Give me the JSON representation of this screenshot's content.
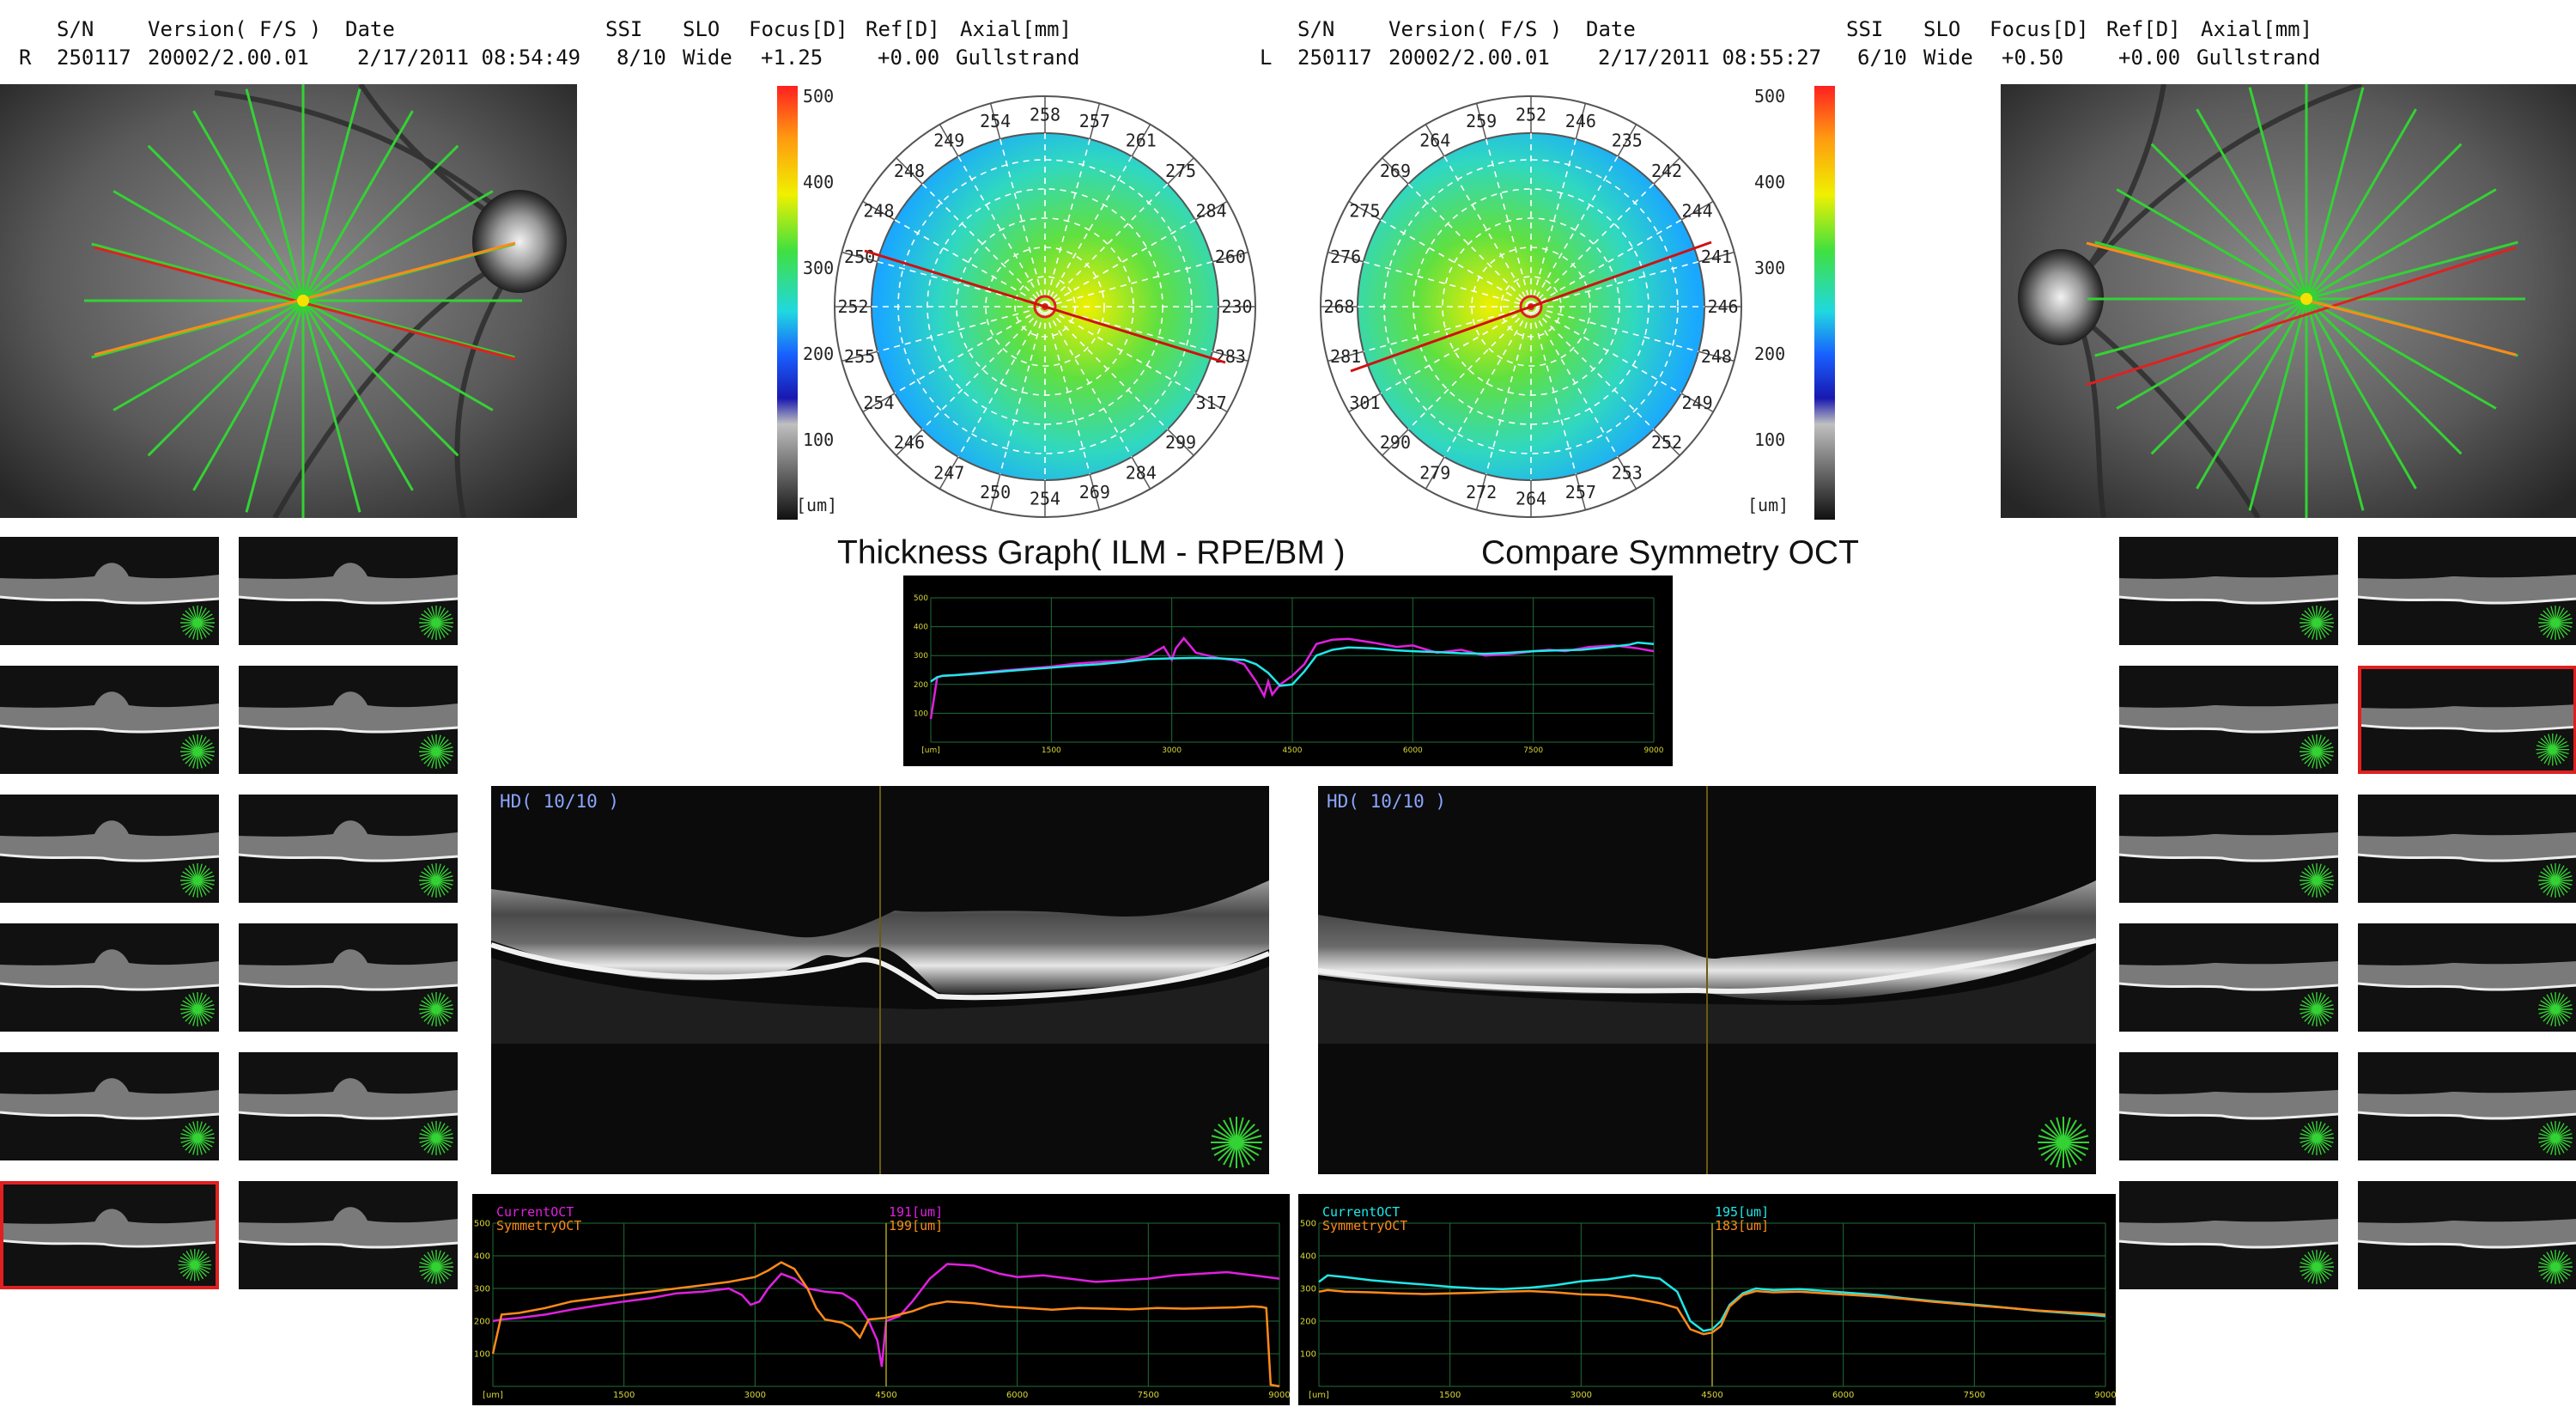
{
  "header_left": {
    "eye": "R",
    "sn_label": "S/N",
    "sn": "250117",
    "version_label": "Version( F/S )",
    "version": "20002/2.00.01",
    "date_label": "Date",
    "date": "2/17/2011 08:54:49",
    "ssi_label": "SSI",
    "ssi": "8/10",
    "slo_label": "SLO",
    "slo": "Wide",
    "focus_label": "Focus[D]",
    "focus": "+1.25",
    "ref_label": "Ref[D]",
    "ref": "+0.00",
    "axial_label": "Axial[mm]",
    "axial": "Gullstrand"
  },
  "header_right": {
    "eye": "L",
    "sn_label": "S/N",
    "sn": "250117",
    "version_label": "Version( F/S )",
    "version": "20002/2.00.01",
    "date_label": "Date",
    "date": "2/17/2011 08:55:27",
    "ssi_label": "SSI",
    "ssi": "6/10",
    "slo_label": "SLO",
    "slo": "Wide",
    "focus_label": "Focus[D]",
    "focus": "+0.50",
    "ref_label": "Ref[D]",
    "ref": "+0.00",
    "axial_label": "Axial[mm]",
    "axial": "Gullstrand"
  },
  "colorbar": {
    "ticks": [
      "500",
      "400",
      "300",
      "200",
      "100"
    ],
    "unit": "[um]"
  },
  "thickness_map_left": {
    "labels": [
      "258",
      "257",
      "261",
      "275",
      "284",
      "260",
      "230",
      "283",
      "317",
      "299",
      "284",
      "269",
      "254",
      "250",
      "247",
      "246",
      "254",
      "255",
      "252",
      "250",
      "248",
      "248",
      "249",
      "254"
    ]
  },
  "thickness_map_right": {
    "labels": [
      "252",
      "246",
      "235",
      "242",
      "244",
      "241",
      "246",
      "248",
      "249",
      "252",
      "253",
      "257",
      "264",
      "272",
      "279",
      "290",
      "301",
      "281",
      "268",
      "276",
      "275",
      "269",
      "264",
      "259"
    ]
  },
  "titles": {
    "thickness_graph": "Thickness Graph( ILM - RPE/BM )",
    "compare": "Compare Symmetry OCT"
  },
  "scans": {
    "left_label": "HD( 10/10 )",
    "right_label": "HD( 10/10 )"
  },
  "compare_left": {
    "current_label": "CurrentOCT",
    "symmetry_label": "SymmetryOCT",
    "current_value": "191[um]",
    "symmetry_value": "199[um]"
  },
  "compare_right": {
    "current_label": "CurrentOCT",
    "symmetry_label": "SymmetryOCT",
    "current_value": "195[um]",
    "symmetry_value": "183[um]"
  },
  "chart_data": [
    {
      "type": "line",
      "title": "Thickness Graph( ILM - RPE/BM )",
      "x_ticks": [
        "[um]",
        "1500",
        "3000",
        "4500",
        "6000",
        "7500",
        "9000"
      ],
      "y_ticks": [
        "500",
        "400",
        "300",
        "200",
        "100"
      ],
      "xlim": [
        0,
        9000
      ],
      "ylim": [
        0,
        500
      ],
      "grid": true,
      "series": [
        {
          "color": "#e020e0",
          "x": [
            0,
            80,
            150,
            300,
            600,
            900,
            1200,
            1500,
            1800,
            2100,
            2400,
            2700,
            2900,
            3000,
            3050,
            3150,
            3300,
            3450,
            3600,
            3750,
            3900,
            4050,
            4150,
            4200,
            4250,
            4350,
            4500,
            4650,
            4800,
            5000,
            5200,
            5500,
            5800,
            6000,
            6300,
            6600,
            6900,
            7200,
            7500,
            7700,
            7900,
            8200,
            8500,
            8800,
            8900,
            9000
          ],
          "y": [
            80,
            225,
            230,
            232,
            240,
            248,
            255,
            262,
            272,
            278,
            282,
            298,
            330,
            285,
            325,
            360,
            310,
            300,
            290,
            285,
            270,
            210,
            160,
            210,
            165,
            200,
            230,
            270,
            340,
            355,
            358,
            345,
            330,
            335,
            310,
            320,
            300,
            305,
            315,
            320,
            315,
            330,
            335,
            325,
            320,
            315
          ]
        },
        {
          "color": "#20e8e8",
          "x": [
            0,
            80,
            150,
            300,
            600,
            900,
            1200,
            1500,
            1800,
            2100,
            2400,
            2700,
            3000,
            3300,
            3600,
            3900,
            4050,
            4200,
            4350,
            4500,
            4650,
            4800,
            5000,
            5200,
            5500,
            5800,
            6000,
            6300,
            6600,
            6900,
            7200,
            7500,
            7800,
            8100,
            8400,
            8700,
            8800,
            9000
          ],
          "y": [
            210,
            225,
            230,
            232,
            238,
            245,
            252,
            258,
            265,
            270,
            278,
            288,
            290,
            292,
            290,
            285,
            270,
            240,
            195,
            200,
            245,
            300,
            320,
            328,
            325,
            318,
            315,
            312,
            308,
            306,
            310,
            315,
            318,
            320,
            328,
            338,
            345,
            340
          ]
        }
      ]
    },
    {
      "type": "line",
      "x_ticks": [
        "[um]",
        "1500",
        "3000",
        "4500",
        "6000",
        "7500",
        "9000"
      ],
      "y_ticks": [
        "500",
        "400",
        "300",
        "200",
        "100"
      ],
      "xlim": [
        0,
        9000
      ],
      "ylim": [
        0,
        500
      ],
      "grid": true,
      "series": [
        {
          "name": "CurrentOCT",
          "color": "#e020e0",
          "x": [
            0,
            100,
            300,
            600,
            900,
            1200,
            1500,
            1800,
            2100,
            2400,
            2700,
            2850,
            2950,
            3050,
            3150,
            3300,
            3450,
            3600,
            3800,
            4000,
            4150,
            4300,
            4400,
            4450,
            4500,
            4650,
            4800,
            5000,
            5200,
            5500,
            5800,
            6000,
            6300,
            6600,
            6900,
            7200,
            7500,
            7800,
            8100,
            8400,
            8700,
            9000
          ],
          "y": [
            200,
            205,
            210,
            220,
            235,
            248,
            260,
            270,
            285,
            290,
            300,
            280,
            250,
            260,
            300,
            345,
            330,
            300,
            290,
            285,
            260,
            200,
            140,
            60,
            200,
            215,
            260,
            330,
            375,
            370,
            345,
            335,
            340,
            330,
            320,
            325,
            330,
            340,
            345,
            350,
            340,
            330
          ]
        },
        {
          "name": "SymmetryOCT",
          "color": "#ff8a1a",
          "x": [
            0,
            100,
            300,
            600,
            900,
            1200,
            1500,
            1800,
            2100,
            2400,
            2700,
            3000,
            3150,
            3300,
            3450,
            3600,
            3700,
            3800,
            3900,
            4000,
            4100,
            4200,
            4300,
            4500,
            4650,
            4800,
            5000,
            5200,
            5500,
            5800,
            6100,
            6400,
            6700,
            7000,
            7300,
            7600,
            7900,
            8200,
            8500,
            8700,
            8800,
            8850,
            8900,
            9000
          ],
          "y": [
            100,
            220,
            225,
            240,
            260,
            270,
            280,
            290,
            300,
            310,
            320,
            335,
            355,
            380,
            360,
            300,
            240,
            205,
            200,
            195,
            180,
            150,
            205,
            210,
            220,
            230,
            250,
            260,
            255,
            245,
            240,
            235,
            240,
            238,
            236,
            240,
            238,
            240,
            242,
            245,
            243,
            240,
            5,
            0
          ]
        }
      ]
    },
    {
      "type": "line",
      "x_ticks": [
        "[um]",
        "1500",
        "3000",
        "4500",
        "6000",
        "7500",
        "9000"
      ],
      "y_ticks": [
        "500",
        "400",
        "300",
        "200",
        "100"
      ],
      "xlim": [
        0,
        9000
      ],
      "ylim": [
        0,
        500
      ],
      "grid": true,
      "series": [
        {
          "name": "CurrentOCT",
          "color": "#20e8e8",
          "x": [
            0,
            100,
            300,
            600,
            900,
            1200,
            1500,
            1800,
            2100,
            2400,
            2700,
            3000,
            3300,
            3600,
            3900,
            4100,
            4250,
            4400,
            4500,
            4600,
            4700,
            4850,
            5000,
            5200,
            5500,
            5800,
            6100,
            6400,
            6700,
            7000,
            7300,
            7600,
            7900,
            8200,
            8500,
            8800,
            9000
          ],
          "y": [
            320,
            340,
            335,
            325,
            318,
            312,
            305,
            300,
            298,
            302,
            310,
            322,
            328,
            340,
            330,
            290,
            200,
            170,
            175,
            200,
            250,
            285,
            300,
            295,
            298,
            292,
            286,
            280,
            270,
            262,
            255,
            248,
            240,
            232,
            226,
            220,
            215
          ]
        },
        {
          "name": "SymmetryOCT",
          "color": "#ff8a1a",
          "x": [
            0,
            100,
            300,
            600,
            900,
            1200,
            1500,
            1800,
            2100,
            2400,
            2700,
            3000,
            3300,
            3600,
            3900,
            4100,
            4250,
            4400,
            4500,
            4600,
            4700,
            4850,
            5000,
            5200,
            5500,
            5800,
            6100,
            6400,
            6700,
            7000,
            7300,
            7600,
            7900,
            8200,
            8500,
            8800,
            9000
          ],
          "y": [
            290,
            295,
            290,
            288,
            285,
            283,
            285,
            287,
            290,
            292,
            288,
            282,
            280,
            270,
            255,
            240,
            175,
            160,
            165,
            185,
            245,
            280,
            292,
            288,
            290,
            285,
            280,
            275,
            268,
            260,
            253,
            246,
            240,
            233,
            228,
            224,
            220
          ]
        }
      ]
    }
  ]
}
